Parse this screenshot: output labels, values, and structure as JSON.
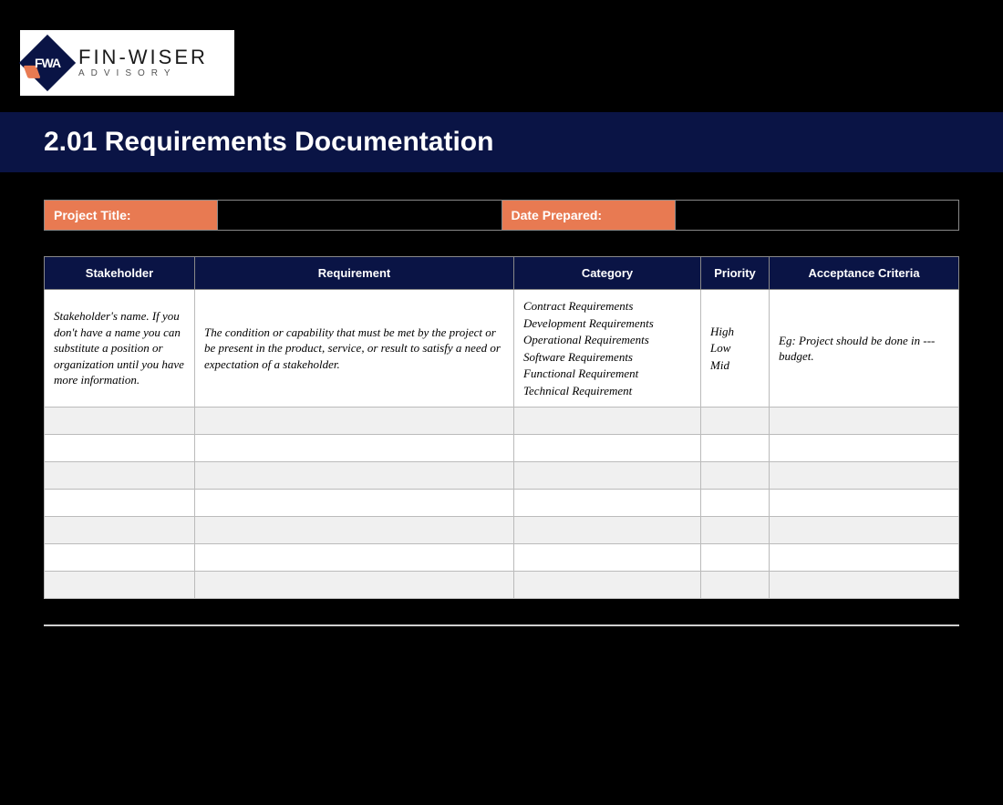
{
  "logo": {
    "initials": "FWA",
    "main": "FIN-WISER",
    "sub": "ADVISORY"
  },
  "title": "2.01 Requirements Documentation",
  "meta": {
    "project_title_label": "Project Title:",
    "project_title_value": "",
    "date_prepared_label": "Date Prepared:",
    "date_prepared_value": ""
  },
  "table": {
    "headers": {
      "stakeholder": "Stakeholder",
      "requirement": "Requirement",
      "category": "Category",
      "priority": "Priority",
      "acceptance": "Acceptance Criteria"
    },
    "guidance": {
      "stakeholder": "Stakeholder's name. If you don't have a name you can substitute a position or organization until you have more information.",
      "requirement": "The condition or capability that must be met by the project or be present in the product, service, or result to satisfy a need or expectation of a stakeholder.",
      "category": [
        "Contract Requirements",
        "Development Requirements",
        "Operational Requirements",
        "Software Requirements",
        "Functional Requirement",
        "Technical Requirement"
      ],
      "priority": [
        "High",
        "Low",
        "Mid"
      ],
      "acceptance": "Eg: Project should be done in --- budget."
    },
    "empty_row_count": 7,
    "colors": {
      "header_bg": "#0a1445",
      "header_fg": "#ffffff",
      "accent_bg": "#e87a52",
      "page_bg": "#000000",
      "row_alt_bg": "#f0f0f0",
      "row_bg": "#ffffff",
      "border": "#bbbbbb"
    }
  }
}
